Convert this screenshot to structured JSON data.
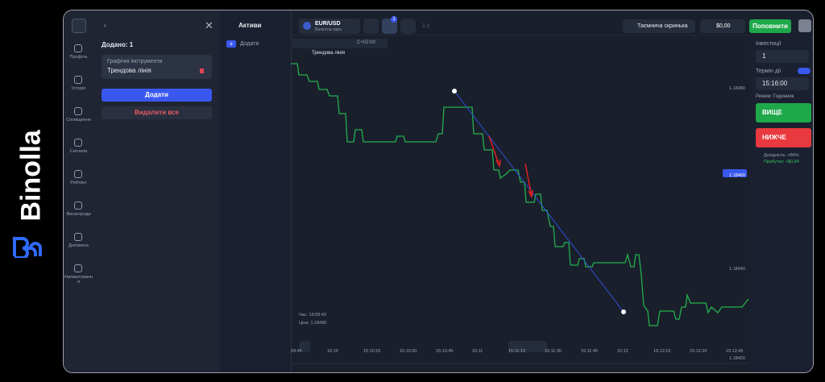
{
  "brand": "Binolla",
  "sidebar": [
    "Профіль",
    "Історія",
    "Сповіщення",
    "Сигнали",
    "Рейтинг",
    "Винагороди",
    "Допомога",
    "Налаштування"
  ],
  "panel": {
    "title": "Додано: 1",
    "card_label": "Графічні інструменти",
    "card_item": "Трендова лінія",
    "add_button": "Додати",
    "delete_all": "Видалити все"
  },
  "assets": {
    "title": "Активи",
    "add": "Додати"
  },
  "topbar": {
    "pair": "EUR/USD",
    "pair_type": "Валютна пара",
    "badge": "1",
    "timeframe": "1 с",
    "mystery_box": "Таємнича скринька",
    "balance": "$0,00",
    "deposit": "Поповнити"
  },
  "chart": {
    "timezone": "C+02:00",
    "tool": "Трендова лінія",
    "price_labels": [
      "1.18480",
      "1.18460",
      "1.18440",
      "1.18420"
    ],
    "time_labels": [
      "09:45",
      "15:10",
      "15:10:15",
      "15:10:30",
      "15:10:45",
      "15:11",
      "15:11:15",
      "15:11:30",
      "15:11:45",
      "15:12",
      "15:12:15",
      "15:12:30",
      "15:12:45"
    ],
    "info_time": "Час: 15:09:43",
    "info_price": "Ціна: 1.18490"
  },
  "trade": {
    "investment_label": "Інвестиції",
    "investment": "1",
    "expiry_label": "Термін дії",
    "expiry": "15:16:00",
    "mode": "Режим: Годинник",
    "up": "ВИЩЕ",
    "down": "НИЖЧЕ",
    "yield": "Дохідність: +84%",
    "profit": "Прибуток: +$0,84"
  }
}
